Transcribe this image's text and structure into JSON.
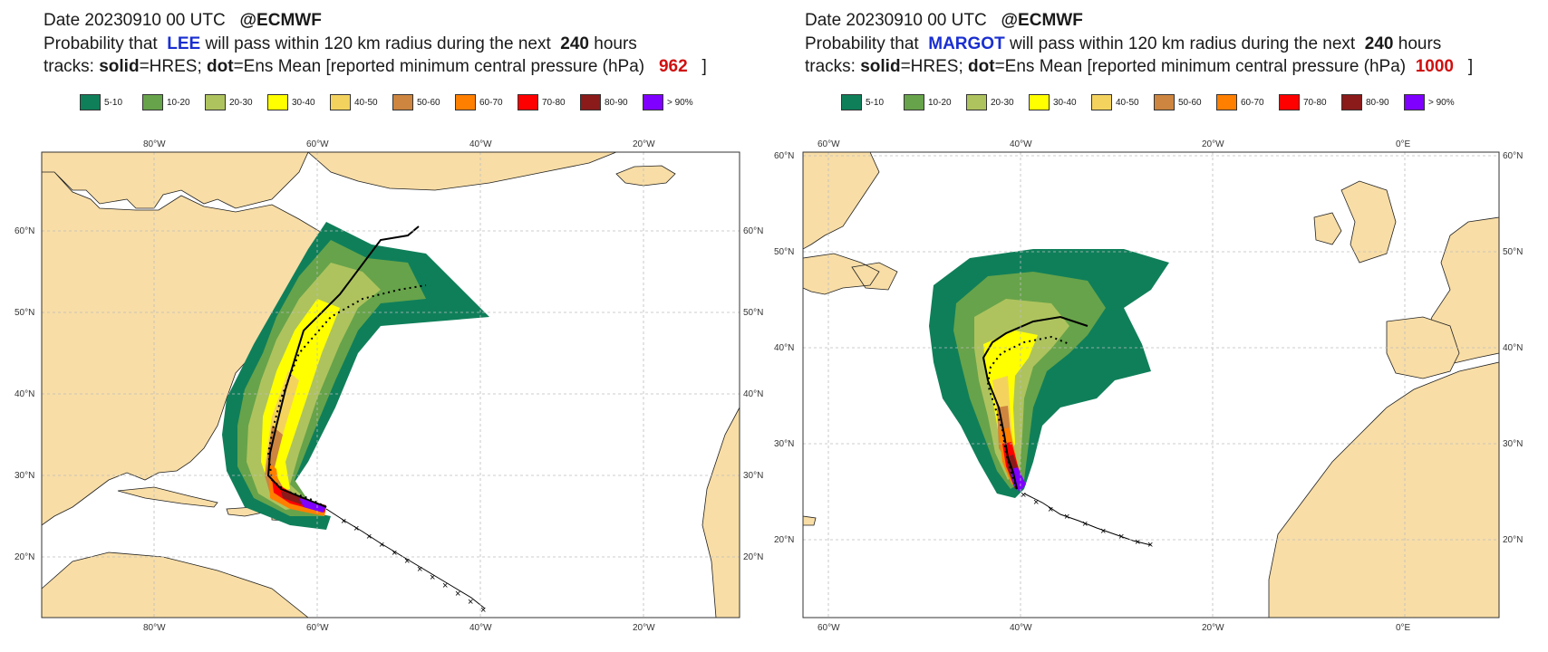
{
  "legend_bins": [
    {
      "label": "5-10",
      "color": "#0f7f5a"
    },
    {
      "label": "10-20",
      "color": "#67a34a"
    },
    {
      "label": "20-30",
      "color": "#aec35e"
    },
    {
      "label": "30-40",
      "color": "#ffff00"
    },
    {
      "label": "40-50",
      "color": "#f3d35e"
    },
    {
      "label": "50-60",
      "color": "#cd853f"
    },
    {
      "label": "60-70",
      "color": "#ff7f00"
    },
    {
      "label": "70-80",
      "color": "#ff0000"
    },
    {
      "label": "80-90",
      "color": "#8b1a1a"
    },
    {
      "label": "> 90%",
      "color": "#7f00ff"
    }
  ],
  "left": {
    "date_line": "Date 20230910 00 UTC",
    "brand": "@ECMWF",
    "prob_prefix": "Probability that",
    "storm_name": "LEE",
    "prob_suffix": "will pass within 120 km radius during the next",
    "hours": "240",
    "hours_unit": "hours",
    "tracks_prefix": "tracks:",
    "solid_word": "solid",
    "solid_desc": "=HRES;",
    "dot_word": "dot",
    "dot_desc": "=Ens Mean [reported minimum central pressure (hPa)",
    "pressure": "962",
    "close_bracket": "]",
    "lon_labels": [
      "80°W",
      "60°W",
      "40°W",
      "20°W"
    ],
    "lat_labels": [
      "60°N",
      "50°N",
      "40°N",
      "30°N",
      "20°N"
    ]
  },
  "right": {
    "date_line": "Date 20230910 00 UTC",
    "brand": "@ECMWF",
    "prob_prefix": "Probability that",
    "storm_name": "MARGOT",
    "prob_suffix": "will pass within 120 km radius during the next",
    "hours": "240",
    "hours_unit": "hours",
    "tracks_prefix": "tracks:",
    "solid_word": "solid",
    "solid_desc": "=HRES;",
    "dot_word": "dot",
    "dot_desc": "=Ens Mean [reported minimum central pressure (hPa)",
    "pressure": "1000",
    "close_bracket": "]",
    "lon_labels": [
      "60°W",
      "40°W",
      "20°W",
      "0°E"
    ],
    "lat_labels": [
      "60°N",
      "50°N",
      "40°N",
      "30°N",
      "20°N"
    ]
  },
  "colors": {
    "land": "#f8dda6",
    "ocean": "#ffffff",
    "frame": "#333333"
  }
}
